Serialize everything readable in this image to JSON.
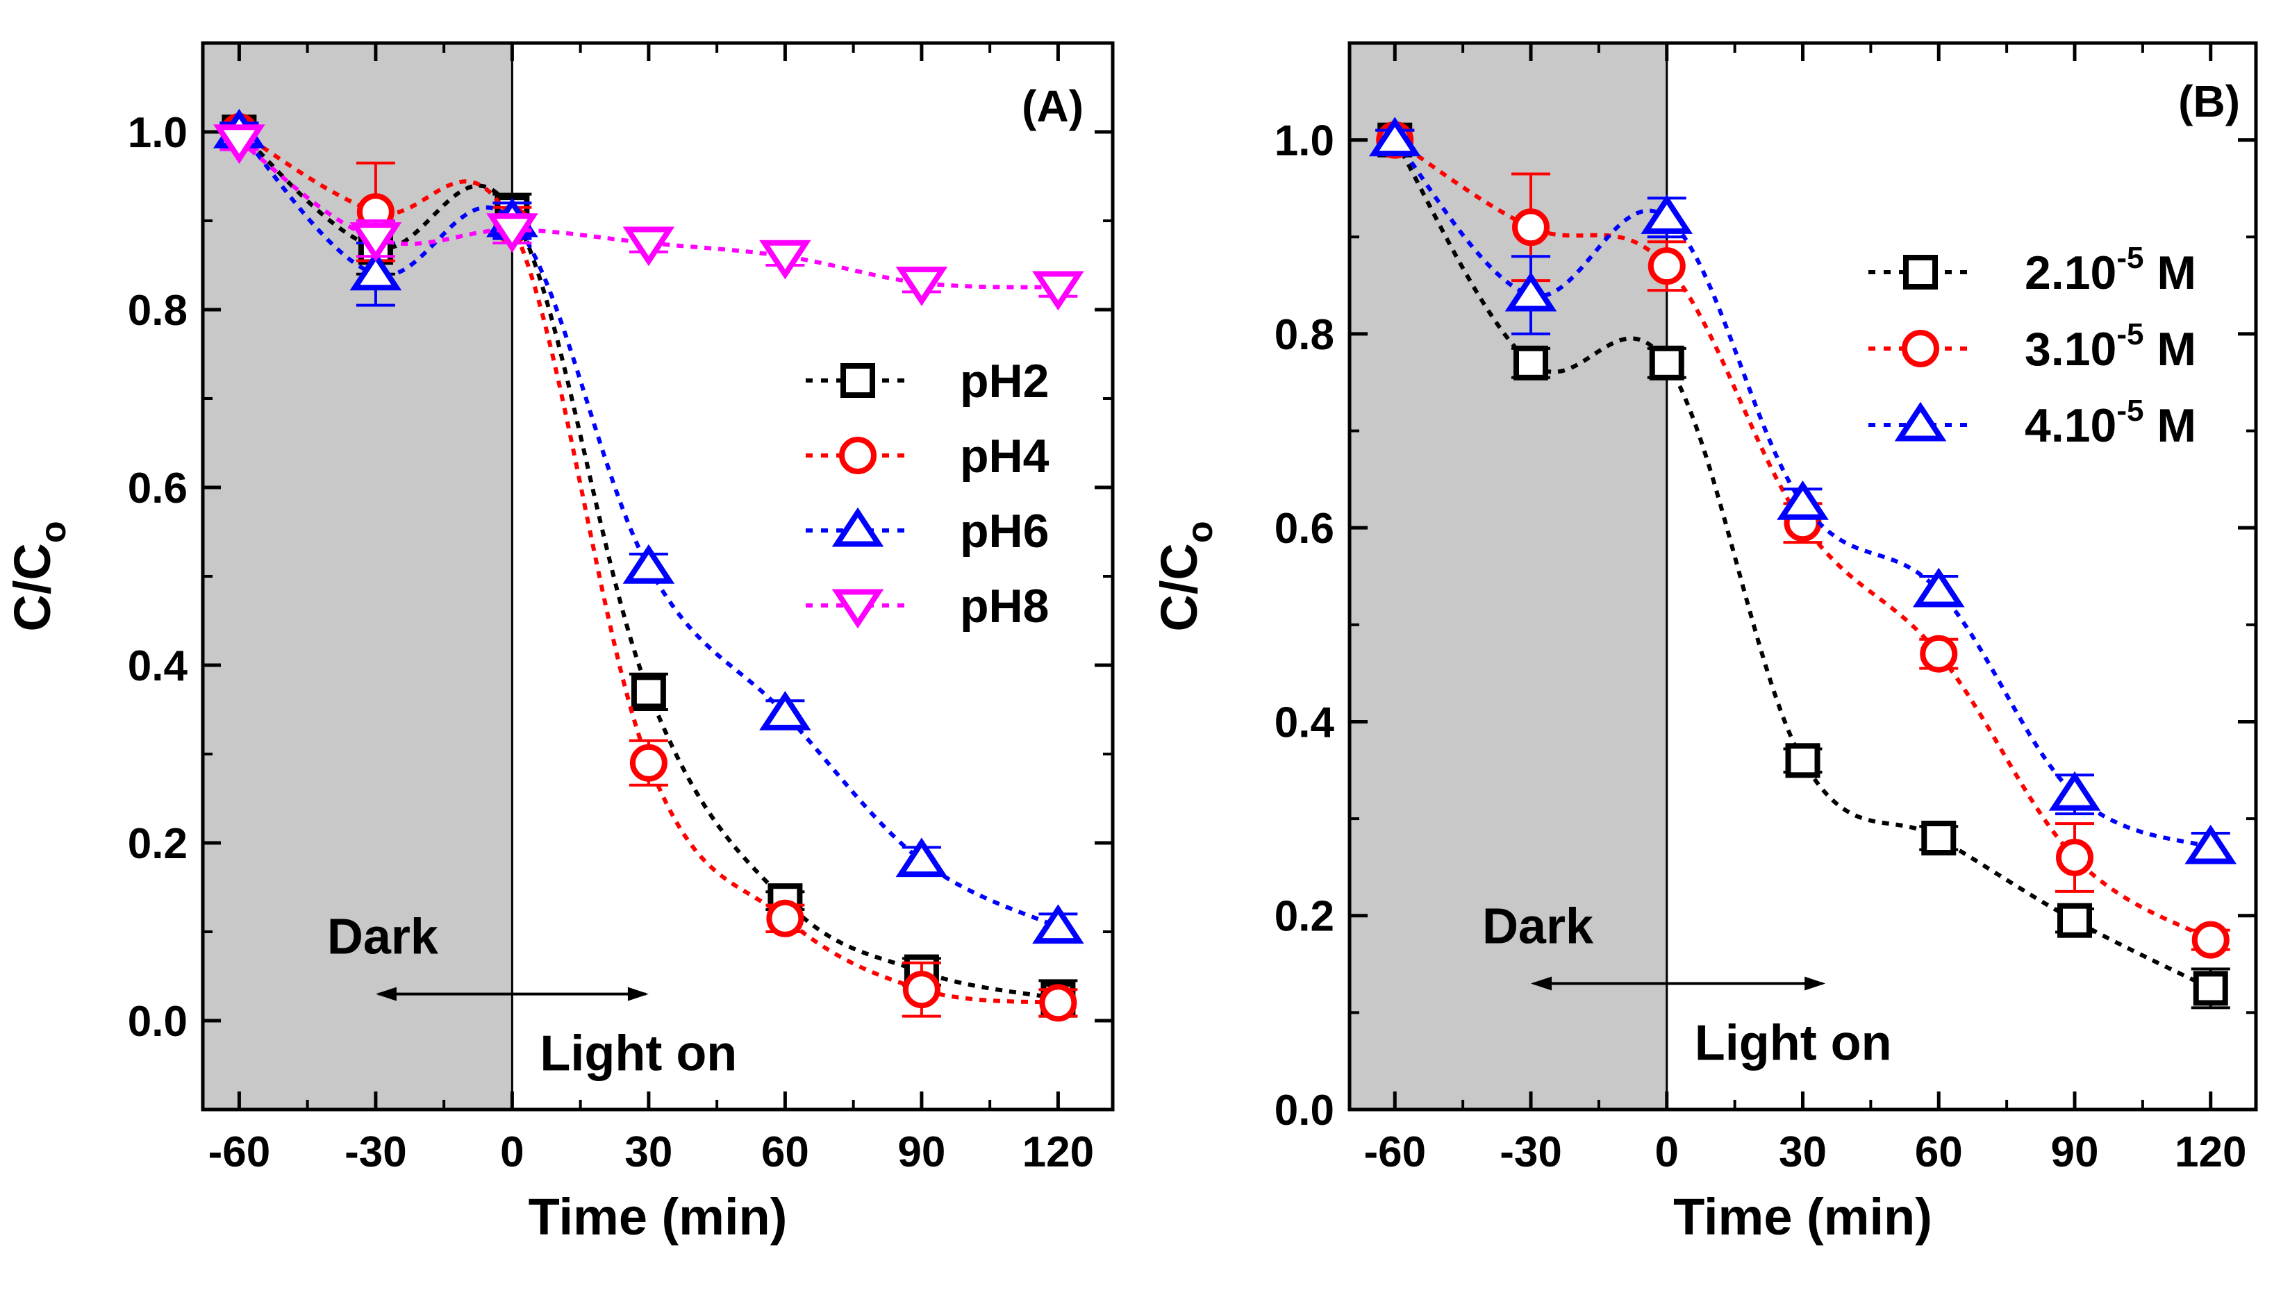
{
  "chart_data": [
    {
      "type": "line",
      "panel_label": "(A)",
      "xlabel": "Time (min)",
      "ylabel": "C/C",
      "ylabel_sub": "o",
      "x": [
        -60,
        -30,
        0,
        30,
        60,
        90,
        120
      ],
      "xlim": [
        -68,
        132
      ],
      "ylim": [
        -0.1,
        1.1
      ],
      "xticks": [
        "-60",
        "-30",
        "0",
        "30",
        "60",
        "90",
        "120"
      ],
      "yticks": [
        "0.0",
        "0.2",
        "0.4",
        "0.6",
        "0.8",
        "1.0"
      ],
      "dark_region": [
        -68,
        0
      ],
      "dark_label": "Dark",
      "light_label": "Light on",
      "arrow_range": [
        -30,
        30
      ],
      "arrow_y": 0.03,
      "legend_position": "center-right",
      "series": [
        {
          "name": "pH2",
          "color": "#000000",
          "marker": "square",
          "values": [
            1.0,
            0.87,
            0.91,
            0.37,
            0.135,
            0.055,
            0.025
          ],
          "errors": [
            0.01,
            0.03,
            0.02,
            0.02,
            0.01,
            0.015,
            0.02
          ]
        },
        {
          "name": "pH4",
          "color": "#ff0000",
          "marker": "circle",
          "values": [
            1.0,
            0.91,
            0.895,
            0.29,
            0.115,
            0.035,
            0.02
          ],
          "errors": [
            0.01,
            0.055,
            0.02,
            0.025,
            0.015,
            0.03,
            0.015
          ]
        },
        {
          "name": "pH6",
          "color": "#0000ff",
          "marker": "triangle-up",
          "values": [
            1.0,
            0.84,
            0.9,
            0.51,
            0.345,
            0.18,
            0.105
          ],
          "errors": [
            0.01,
            0.035,
            0.02,
            0.015,
            0.015,
            0.015,
            0.015
          ]
        },
        {
          "name": "pH8",
          "color": "#ff00ff",
          "marker": "triangle-down",
          "values": [
            0.99,
            0.88,
            0.89,
            0.875,
            0.86,
            0.83,
            0.825
          ],
          "errors": [
            0.01,
            0.02,
            0.015,
            0.01,
            0.01,
            0.01,
            0.01
          ]
        }
      ]
    },
    {
      "type": "line",
      "panel_label": "(B)",
      "xlabel": "Time (min)",
      "ylabel": "C/C",
      "ylabel_sub": "o",
      "x": [
        -60,
        -30,
        0,
        30,
        60,
        90,
        120
      ],
      "xlim": [
        -70,
        130
      ],
      "ylim": [
        0,
        1.1
      ],
      "xticks": [
        "-60",
        "-30",
        "0",
        "30",
        "60",
        "90",
        "120"
      ],
      "yticks": [
        "0.0",
        "0.2",
        "0.4",
        "0.6",
        "0.8",
        "1.0"
      ],
      "dark_region": [
        -70,
        0
      ],
      "dark_label": "Dark",
      "light_label": "Light on",
      "arrow_range": [
        -30,
        35
      ],
      "arrow_y": 0.13,
      "legend_position": "top-right",
      "series": [
        {
          "name": "2.10",
          "sup": "-5",
          "unit": " M",
          "color": "#000000",
          "marker": "square",
          "values": [
            1.0,
            0.77,
            0.77,
            0.36,
            0.28,
            0.195,
            0.125
          ],
          "errors": [
            0.01,
            0.015,
            0.015,
            0.012,
            0.012,
            0.012,
            0.02
          ]
        },
        {
          "name": "3.10",
          "sup": "-5",
          "unit": " M",
          "color": "#ff0000",
          "marker": "circle",
          "values": [
            1.0,
            0.91,
            0.87,
            0.605,
            0.47,
            0.26,
            0.175
          ],
          "errors": [
            0.01,
            0.055,
            0.025,
            0.02,
            0.015,
            0.035,
            0.01
          ]
        },
        {
          "name": "4.10",
          "sup": "-5",
          "unit": " M",
          "color": "#0000ff",
          "marker": "triangle-up",
          "values": [
            1.0,
            0.84,
            0.92,
            0.625,
            0.535,
            0.325,
            0.27
          ],
          "errors": [
            0.01,
            0.04,
            0.02,
            0.015,
            0.015,
            0.02,
            0.015
          ]
        }
      ]
    }
  ]
}
